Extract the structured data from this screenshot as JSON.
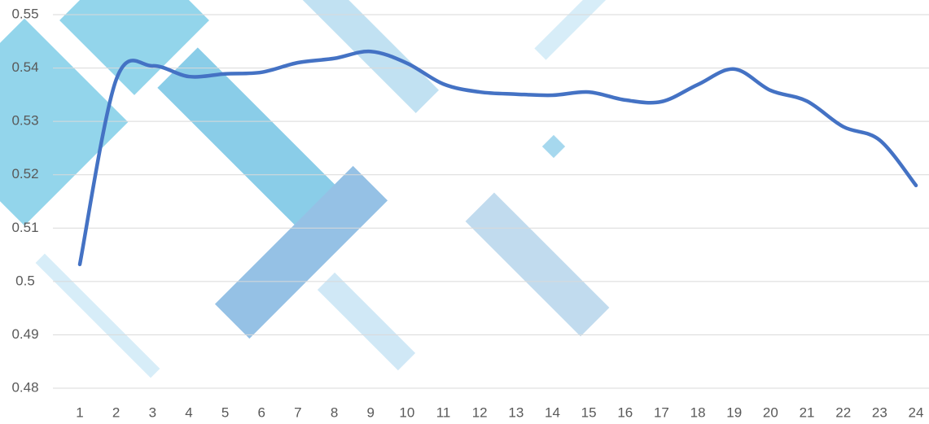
{
  "chart_data": {
    "type": "line",
    "categories": [
      "1",
      "2",
      "3",
      "4",
      "5",
      "6",
      "7",
      "8",
      "9",
      "10",
      "11",
      "12",
      "13",
      "14",
      "15",
      "16",
      "17",
      "18",
      "19",
      "20",
      "21",
      "22",
      "23",
      "24"
    ],
    "series": [
      {
        "color": "#4472c4",
        "values": [
          0.5032,
          0.5378,
          0.5404,
          0.5384,
          0.5389,
          0.5392,
          0.541,
          0.5418,
          0.5431,
          0.5409,
          0.537,
          0.5355,
          0.5351,
          0.5349,
          0.5355,
          0.534,
          0.5337,
          0.5369,
          0.5398,
          0.5358,
          0.5338,
          0.529,
          0.5265,
          0.518
        ]
      }
    ],
    "ylim": [
      0.48,
      0.55
    ],
    "yticks": [
      0.48,
      0.49,
      0.5,
      0.51,
      0.52,
      0.53,
      0.54,
      0.55
    ],
    "grid": true
  }
}
